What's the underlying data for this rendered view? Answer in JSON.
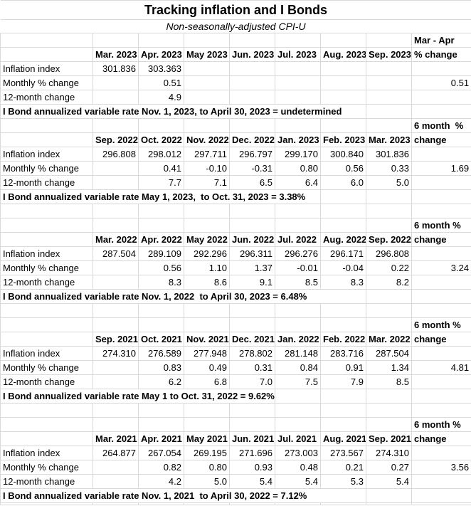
{
  "sheet": {
    "title": "Tracking inflation and I Bonds",
    "subtitle": "Non-seasonally-adjusted CPI-U"
  },
  "row_labels": [
    "Inflation index",
    "Monthly % change",
    "12-month change"
  ],
  "colors": {
    "gridline": "#d9d9d9",
    "text": "#000000",
    "background": "#ffffff"
  },
  "tables": [
    {
      "change_header_line1": "Mar - Apr",
      "change_header_line2": "% change",
      "months": [
        "Mar. 2023",
        "Apr. 2023",
        "May 2023",
        "Jun. 2023",
        "Jul. 2023",
        "Aug. 2023",
        "Sep. 2023"
      ],
      "inflation_index": [
        "301.836",
        "303.363",
        "",
        "",
        "",
        "",
        ""
      ],
      "monthly_pct_change": [
        "",
        "0.51",
        "",
        "",
        "",
        "",
        ""
      ],
      "change_value": "0.51",
      "twelve_month_change": [
        "",
        "4.9",
        "",
        "",
        "",
        "",
        ""
      ],
      "footer": "I Bond annualized variable rate Nov. 1, 2023, to April 30, 2023 = undetermined",
      "footer_span": 7
    },
    {
      "change_header_line1": "6 month  %",
      "change_header_line2": "change",
      "months": [
        "Sep. 2022",
        "Oct. 2022",
        "Nov. 2022",
        "Dec. 2022",
        "Jan. 2023",
        "Feb. 2023",
        "Mar. 2023"
      ],
      "inflation_index": [
        "296.808",
        "298.012",
        "297.711",
        "296.797",
        "299.170",
        "300.840",
        "301.836"
      ],
      "monthly_pct_change": [
        "",
        "0.41",
        "-0.10",
        "-0.31",
        "0.80",
        "0.56",
        "0.33"
      ],
      "change_value": "1.69",
      "twelve_month_change": [
        "",
        "7.7",
        "7.1",
        "6.5",
        "6.4",
        "6.0",
        "5.0"
      ],
      "footer": "I Bond annualized variable rate May 1, 2023,  to Oct. 31, 2023 = 3.38%",
      "footer_span": 6
    },
    {
      "change_header_line1": "6 month %",
      "change_header_line2": "change",
      "months": [
        "Mar. 2022",
        "Apr. 2022",
        "May 2022",
        "Jun. 2022",
        "Jul. 2022",
        "Aug. 2022",
        "Sep. 2022"
      ],
      "inflation_index": [
        "287.504",
        "289.109",
        "292.296",
        "296.311",
        "296.276",
        "296.171",
        "296.808"
      ],
      "monthly_pct_change": [
        "",
        "0.56",
        "1.10",
        "1.37",
        "-0.01",
        "-0.04",
        "0.22"
      ],
      "change_value": "3.24",
      "twelve_month_change": [
        "",
        "8.3",
        "8.6",
        "9.1",
        "8.5",
        "8.3",
        "8.2"
      ],
      "footer": "I Bond annualized variable rate Nov. 1, 2022  to April 30, 2023 = 6.48%",
      "footer_span": 7
    },
    {
      "change_header_line1": "6 month %",
      "change_header_line2": "change",
      "months": [
        "Sep. 2021",
        "Oct. 2021",
        "Nov. 2021",
        "Dec. 2021",
        "Jan. 2022",
        "Feb. 2022",
        "Mar. 2022"
      ],
      "inflation_index": [
        "274.310",
        "276.589",
        "277.948",
        "278.802",
        "281.148",
        "283.716",
        "287.504"
      ],
      "monthly_pct_change": [
        "",
        "0.83",
        "0.49",
        "0.31",
        "0.84",
        "0.91",
        "1.34"
      ],
      "change_value": "4.81",
      "twelve_month_change": [
        "",
        "6.2",
        "6.8",
        "7.0",
        "7.5",
        "7.9",
        "8.5"
      ],
      "footer": "I Bond annualized variable rate May 1 to Oct. 31, 2022 = 9.62%",
      "footer_span": 5
    },
    {
      "change_header_line1": "6 month %",
      "change_header_line2": "change",
      "months": [
        "Mar. 2021",
        "Apr. 2021",
        "May 2021",
        "Jun. 2021",
        "Jul. 2021",
        "Aug. 2021",
        "Sep. 2021"
      ],
      "inflation_index": [
        "264.877",
        "267.054",
        "269.195",
        "271.696",
        "273.003",
        "273.567",
        "274.310"
      ],
      "monthly_pct_change": [
        "",
        "0.82",
        "0.80",
        "0.93",
        "0.48",
        "0.21",
        "0.27"
      ],
      "change_value": "3.56",
      "twelve_month_change": [
        "",
        "4.2",
        "5.0",
        "5.4",
        "5.4",
        "5.3",
        "5.4"
      ],
      "footer": "I Bond annualized variable rate Nov. 1, 2021  to April 30, 2022 = 7.12%",
      "footer_span": 7
    }
  ]
}
